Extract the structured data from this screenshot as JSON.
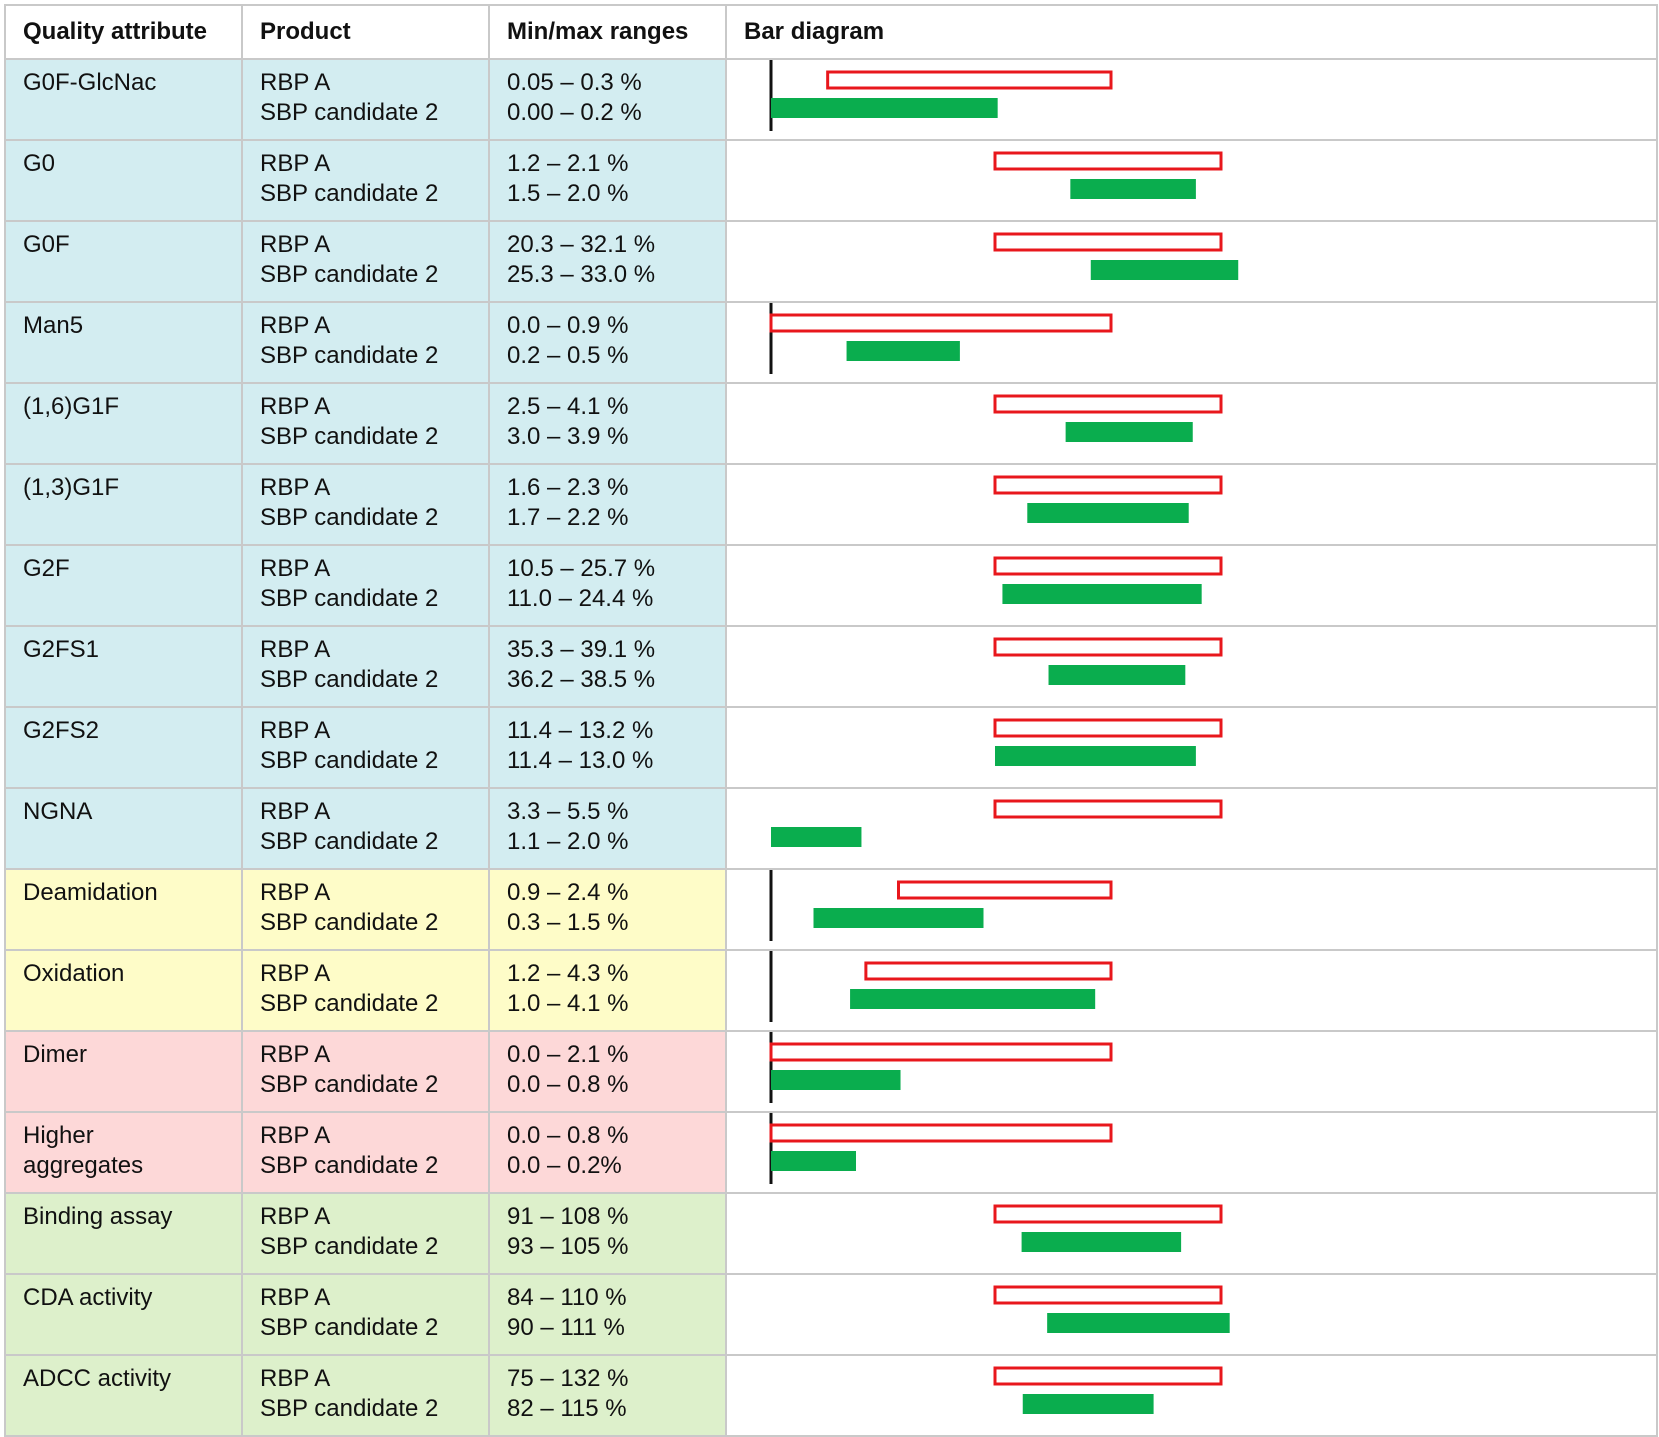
{
  "headers": {
    "attribute": "Quality attribute",
    "product": "Product",
    "ranges": "Min/max ranges",
    "diagram": "Bar diagram"
  },
  "colors": {
    "glycan_bg": "#d3edf1",
    "chemical_bg": "#fefcc8",
    "size_bg": "#fdd8d8",
    "function_bg": "#ddf0cb",
    "reference_outline": "#e8171c",
    "biosimilar_fill": "#0aad4e",
    "baseline": "#111111"
  },
  "rows": [
    {
      "attribute": "G0F-GlcNac",
      "category": "glycan",
      "ref_product": "RBP A",
      "cand_product": "SBP candidate 2",
      "ref_range": "0.05 – 0.3 %",
      "cand_range": "0.00 – 0.2 %"
    },
    {
      "attribute": "G0",
      "category": "glycan",
      "ref_product": "RBP A",
      "cand_product": "SBP candidate 2",
      "ref_range": "1.2 – 2.1 %",
      "cand_range": "1.5 – 2.0 %"
    },
    {
      "attribute": "G0F",
      "category": "glycan",
      "ref_product": "RBP A",
      "cand_product": "SBP candidate 2",
      "ref_range": "20.3 – 32.1 %",
      "cand_range": "25.3 – 33.0 %"
    },
    {
      "attribute": "Man5",
      "category": "glycan",
      "ref_product": "RBP A",
      "cand_product": "SBP candidate 2",
      "ref_range": "0.0 – 0.9 %",
      "cand_range": "0.2 – 0.5 %"
    },
    {
      "attribute": "(1,6)G1F",
      "category": "glycan",
      "ref_product": "RBP A",
      "cand_product": "SBP candidate 2",
      "ref_range": "2.5 – 4.1 %",
      "cand_range": "3.0 – 3.9 %"
    },
    {
      "attribute": "(1,3)G1F",
      "category": "glycan",
      "ref_product": "RBP A",
      "cand_product": "SBP candidate 2",
      "ref_range": "1.6 – 2.3 %",
      "cand_range": "1.7 – 2.2 %"
    },
    {
      "attribute": "G2F",
      "category": "glycan",
      "ref_product": "RBP A",
      "cand_product": "SBP candidate 2",
      "ref_range": "10.5 – 25.7 %",
      "cand_range": "11.0 – 24.4 %"
    },
    {
      "attribute": "G2FS1",
      "category": "glycan",
      "ref_product": "RBP A",
      "cand_product": "SBP candidate 2",
      "ref_range": "35.3 – 39.1 %",
      "cand_range": "36.2 – 38.5 %"
    },
    {
      "attribute": "G2FS2",
      "category": "glycan",
      "ref_product": "RBP A",
      "cand_product": "SBP candidate 2",
      "ref_range": "11.4 – 13.2 %",
      "cand_range": "11.4 – 13.0 %"
    },
    {
      "attribute": "NGNA",
      "category": "glycan",
      "ref_product": "RBP A",
      "cand_product": "SBP candidate 2",
      "ref_range": "3.3 – 5.5 %",
      "cand_range": "1.1 – 2.0 %"
    },
    {
      "attribute": "Deamidation",
      "category": "chemical",
      "ref_product": "RBP A",
      "cand_product": "SBP candidate 2",
      "ref_range": "0.9 – 2.4 %",
      "cand_range": "0.3 – 1.5 %"
    },
    {
      "attribute": "Oxidation",
      "category": "chemical",
      "ref_product": "RBP A",
      "cand_product": "SBP candidate 2",
      "ref_range": "1.2 – 4.3 %",
      "cand_range": "1.0 – 4.1 %"
    },
    {
      "attribute": "Dimer",
      "category": "size",
      "ref_product": "RBP A",
      "cand_product": "SBP candidate 2",
      "ref_range": "0.0 – 2.1 %",
      "cand_range": "0.0 – 0.8 %"
    },
    {
      "attribute_lines": [
        "Higher",
        "aggregates"
      ],
      "category": "size",
      "ref_product": "RBP A",
      "cand_product": "SBP candidate 2",
      "ref_range": "0.0 – 0.8 %",
      "cand_range": "0.0 – 0.2%"
    },
    {
      "attribute": "Binding assay",
      "category": "function",
      "ref_product": "RBP A",
      "cand_product": "SBP candidate 2",
      "ref_range": "91 – 108 %",
      "cand_range": "93 – 105 %"
    },
    {
      "attribute": "CDA activity",
      "category": "function",
      "ref_product": "RBP A",
      "cand_product": "SBP candidate 2",
      "ref_range": "84 – 110 %",
      "cand_range": "90 – 111 %"
    },
    {
      "attribute": "ADCC activity",
      "category": "function",
      "ref_product": "RBP A",
      "cand_product": "SBP candidate 2",
      "ref_range": "75 – 132 %",
      "cand_range": "82 – 115 %"
    }
  ],
  "chart_data": {
    "type": "range-bar",
    "title": "",
    "legend": "none",
    "series": [
      {
        "style": "red outline, unfilled"
      },
      {
        "style": "green solid fill"
      }
    ],
    "note": "Min/max range bars are drawn on a per-row normalized scale; rows with a minimum of zero are anchored to a black baseline at scale 0.",
    "ranges": [
      {
        "ref": [
          0.05,
          0.3
        ],
        "cand": [
          0.0,
          0.2
        ],
        "scale": [
          0,
          0.3
        ],
        "baseline": true
      },
      {
        "ref": [
          1.2,
          2.1
        ],
        "cand": [
          1.5,
          2.0
        ]
      },
      {
        "ref": [
          20.3,
          32.1
        ],
        "cand": [
          25.3,
          33.0
        ]
      },
      {
        "ref": [
          0.0,
          0.9
        ],
        "cand": [
          0.2,
          0.5
        ],
        "scale": [
          0,
          0.9
        ],
        "baseline": true
      },
      {
        "ref": [
          2.5,
          4.1
        ],
        "cand": [
          3.0,
          3.9
        ]
      },
      {
        "ref": [
          1.6,
          2.3
        ],
        "cand": [
          1.7,
          2.2
        ]
      },
      {
        "ref": [
          10.5,
          25.7
        ],
        "cand": [
          11.0,
          24.4
        ]
      },
      {
        "ref": [
          35.3,
          39.1
        ],
        "cand": [
          36.2,
          38.5
        ]
      },
      {
        "ref": [
          11.4,
          13.2
        ],
        "cand": [
          11.4,
          13.0
        ]
      },
      {
        "ref": [
          3.3,
          5.5
        ],
        "cand": [
          1.1,
          2.0
        ]
      },
      {
        "ref": [
          0.9,
          2.4
        ],
        "cand": [
          0.3,
          1.5
        ],
        "scale": [
          0,
          2.4
        ],
        "baseline": true
      },
      {
        "ref": [
          1.2,
          4.3
        ],
        "cand": [
          1.0,
          4.1
        ],
        "scale": [
          0,
          4.3
        ],
        "baseline": true
      },
      {
        "ref": [
          0.0,
          2.1
        ],
        "cand": [
          0.0,
          0.8
        ],
        "scale": [
          0,
          2.1
        ],
        "baseline": true
      },
      {
        "ref": [
          0.0,
          0.8
        ],
        "cand": [
          0.0,
          0.2
        ],
        "scale": [
          0,
          0.8
        ],
        "baseline": true
      },
      {
        "ref": [
          91,
          108
        ],
        "cand": [
          93,
          105
        ]
      },
      {
        "ref": [
          84,
          110
        ],
        "cand": [
          90,
          111
        ]
      },
      {
        "ref": [
          75,
          132
        ],
        "cand": [
          82,
          115
        ]
      }
    ]
  }
}
